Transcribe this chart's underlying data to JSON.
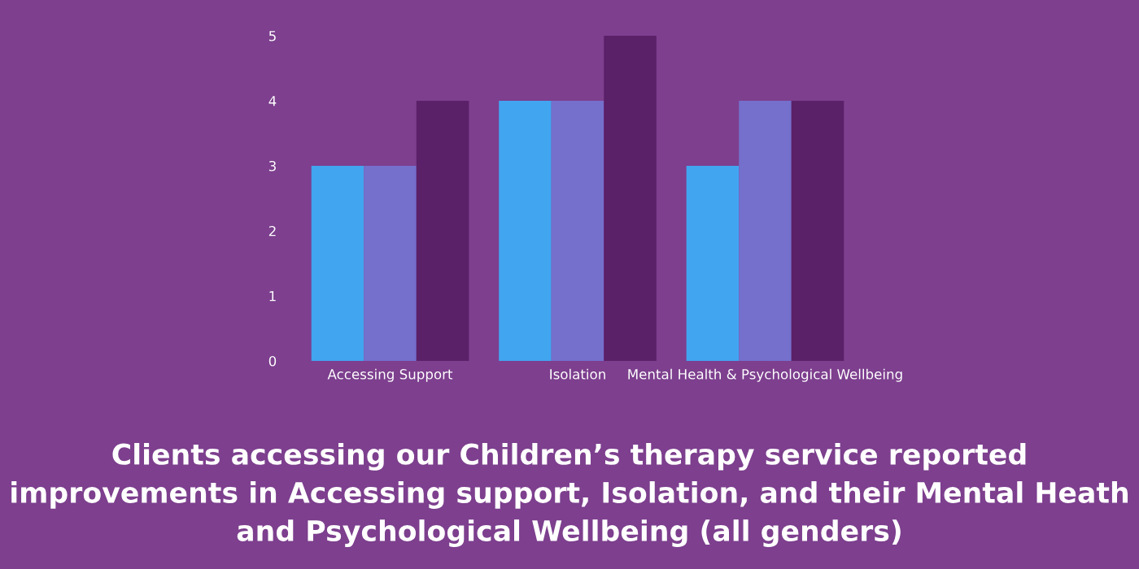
{
  "chart_data": {
    "type": "bar",
    "title": "Clients accessing our Children’s therapy service reported\nimprovements in Accessing support, Isolation, and their Mental Heath\nand Psychological Wellbeing (all genders)",
    "categories": [
      "Accessing Support",
      "Isolation",
      "Mental Health & Psychological Wellbeing"
    ],
    "series": [
      {
        "color": "#42a5f0",
        "values": [
          3,
          4,
          3
        ]
      },
      {
        "color": "#7470cc",
        "values": [
          3,
          4,
          4
        ]
      },
      {
        "color": "#5a2068",
        "values": [
          4,
          5,
          4
        ]
      }
    ],
    "ylim": [
      0,
      5
    ],
    "yticks": [
      0,
      1,
      2,
      3,
      4,
      5
    ],
    "grid": false,
    "legend": false
  }
}
